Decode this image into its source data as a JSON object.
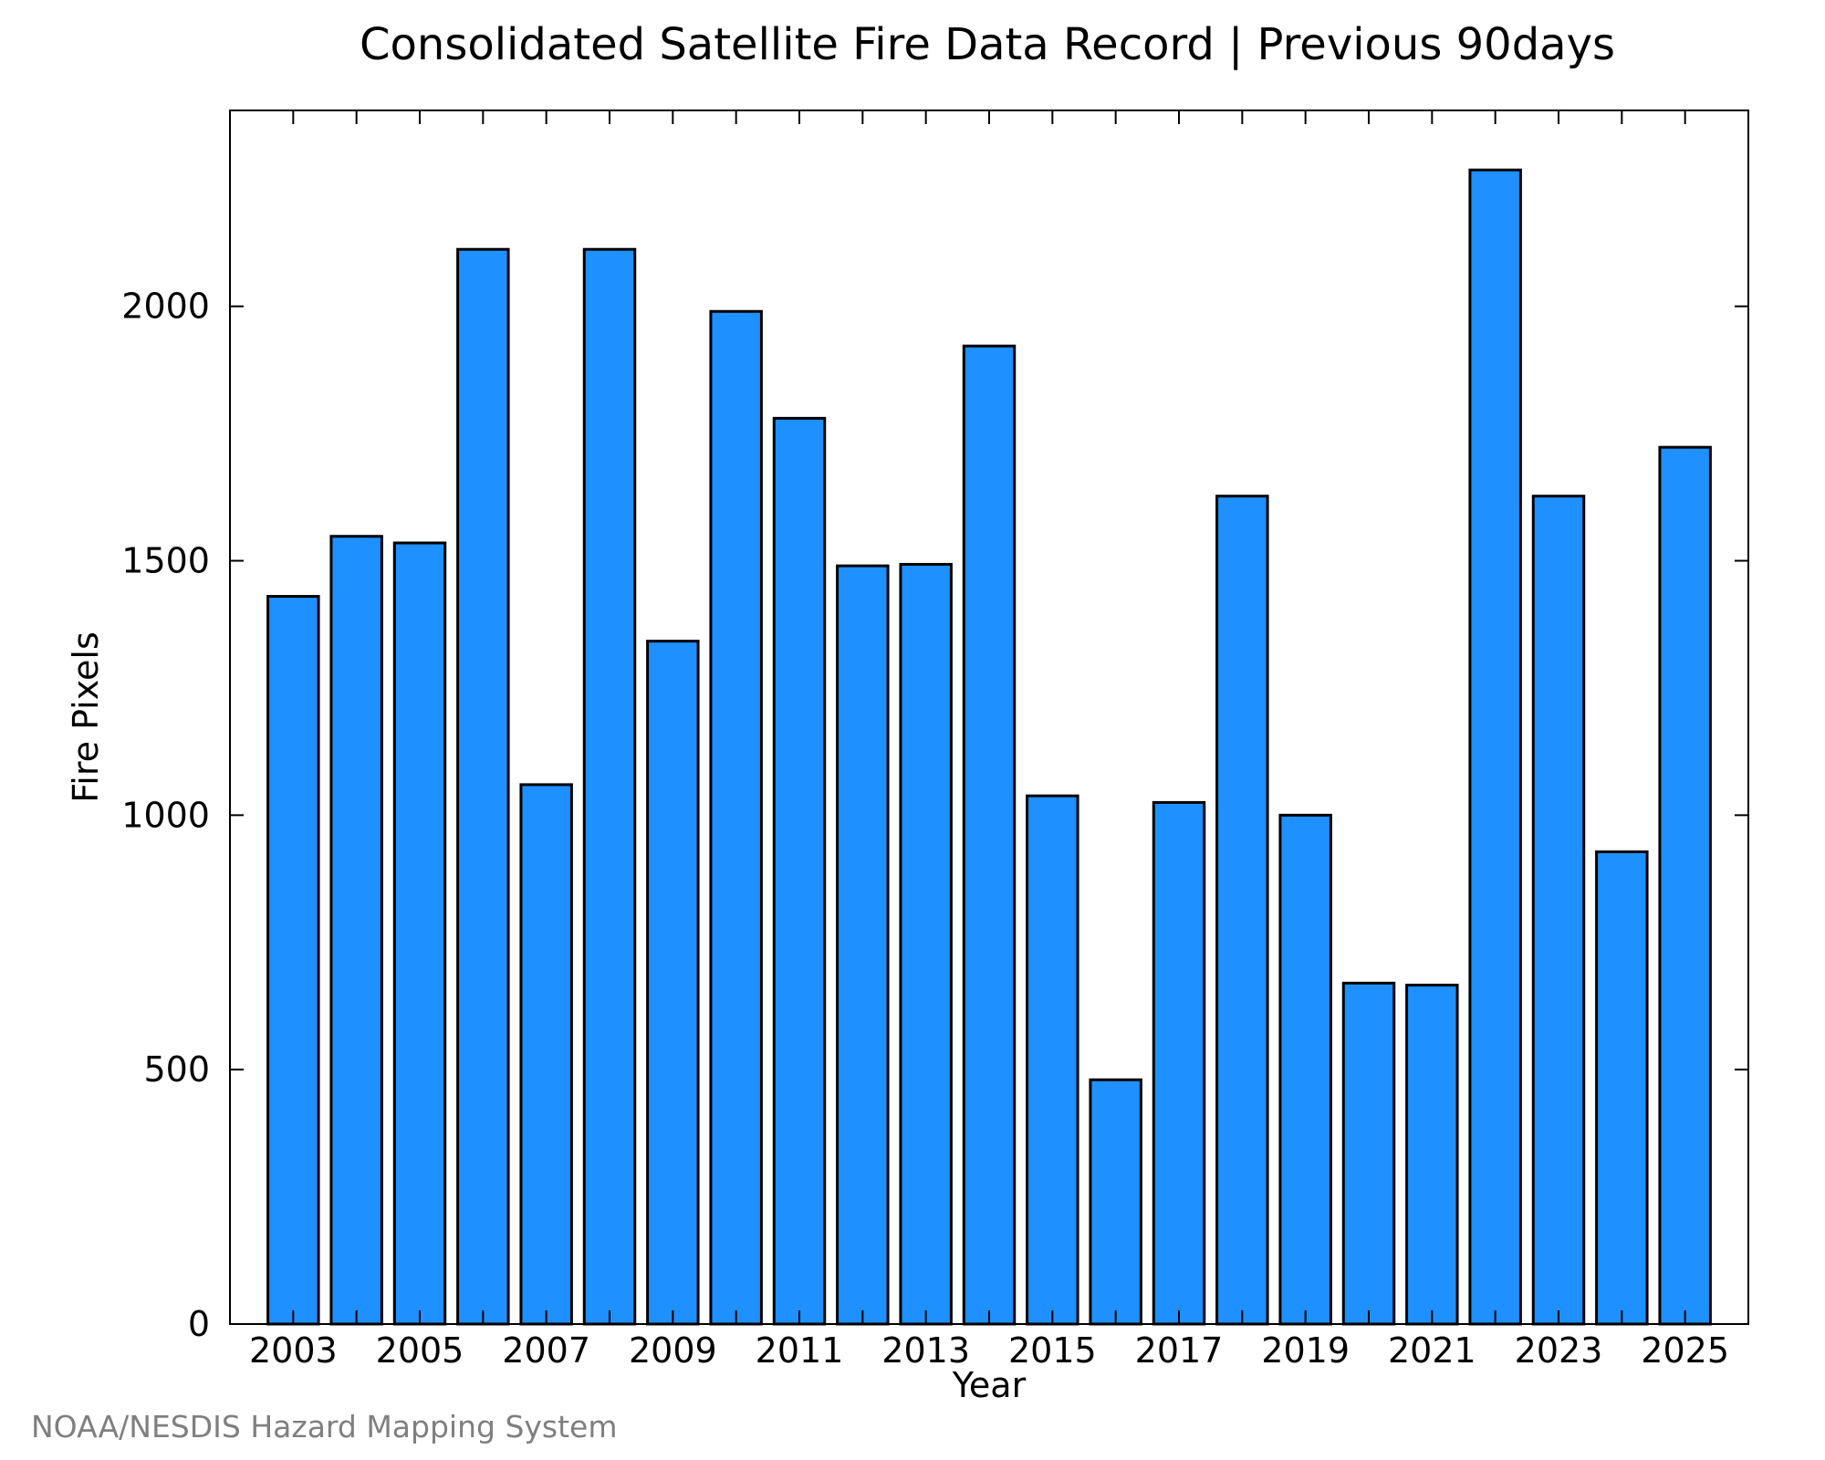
{
  "chart_data": {
    "type": "bar",
    "title": "Consolidated Satellite Fire Data Record | Previous 90days",
    "xlabel": "Year",
    "ylabel": "Fire Pixels",
    "categories": [
      "2003",
      "2004",
      "2005",
      "2006",
      "2007",
      "2008",
      "2009",
      "2010",
      "2011",
      "2012",
      "2013",
      "2014",
      "2015",
      "2016",
      "2017",
      "2018",
      "2019",
      "2020",
      "2021",
      "2022",
      "2023",
      "2024",
      "2025"
    ],
    "values": [
      1430,
      1548,
      1535,
      2112,
      1060,
      2112,
      1342,
      1990,
      1780,
      1490,
      1493,
      1922,
      1038,
      480,
      1025,
      1627,
      1000,
      670,
      666,
      2268,
      1627,
      928,
      1723
    ],
    "ylim": [
      0,
      2385
    ],
    "yticks": [
      0,
      500,
      1000,
      1500,
      2000
    ],
    "xtick_labels": [
      "2003",
      "2005",
      "2007",
      "2009",
      "2011",
      "2013",
      "2015",
      "2017",
      "2019",
      "2021",
      "2023",
      "2025"
    ],
    "bar_color": "#1e90ff",
    "edge_color": "#000000",
    "grid": false,
    "legend": "none"
  },
  "footer": {
    "credit": "NOAA/NESDIS Hazard Mapping System"
  }
}
